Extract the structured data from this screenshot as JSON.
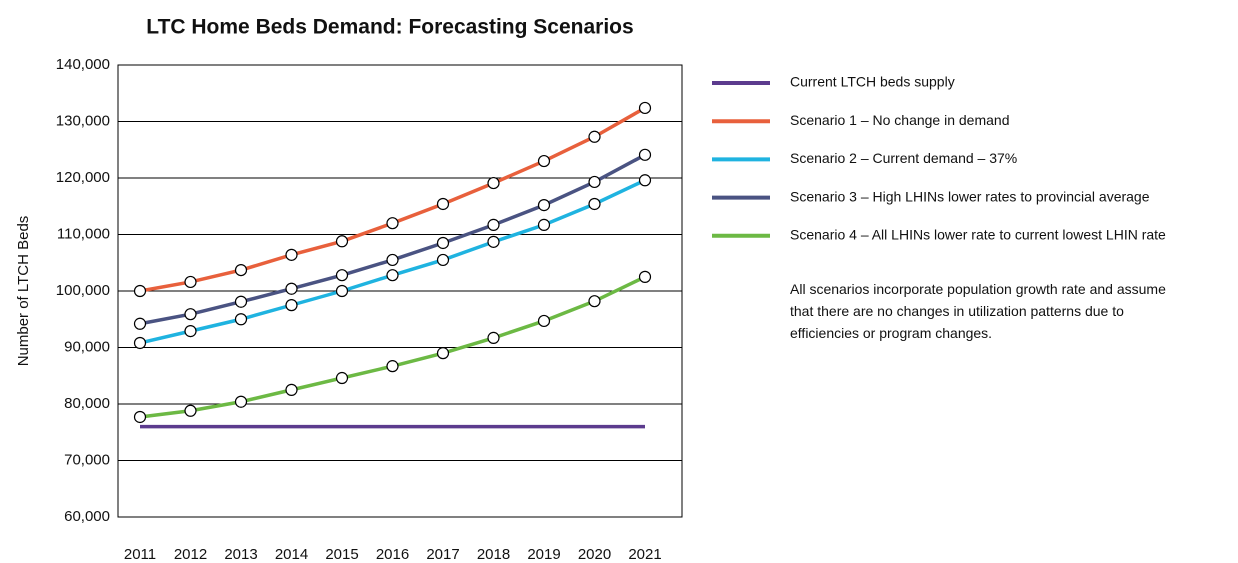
{
  "chart_data": {
    "type": "line",
    "title": "LTC Home Beds Demand: Forecasting Scenarios",
    "y_label": "Number of LTCH Beds",
    "annotation": "All scenarios incorporate population growth rate and assume that there are no changes in utilization patterns due to efficiencies or program changes.",
    "categories": [
      "2011",
      "2012",
      "2013",
      "2014",
      "2015",
      "2016",
      "2017",
      "2018",
      "2019",
      "2020",
      "2021"
    ],
    "ylim": [
      60000,
      140000
    ],
    "yticks": [
      {
        "value": 60000,
        "label": "60,000"
      },
      {
        "value": 70000,
        "label": "70,000"
      },
      {
        "value": 80000,
        "label": "80,000"
      },
      {
        "value": 90000,
        "label": "90,000"
      },
      {
        "value": 100000,
        "label": "100,000"
      },
      {
        "value": 110000,
        "label": "110,000"
      },
      {
        "value": 120000,
        "label": "120,000"
      },
      {
        "value": 130000,
        "label": "130,000"
      },
      {
        "value": 140000,
        "label": "140,000"
      }
    ],
    "grid": true,
    "series": [
      {
        "name": "Current LTCH beds supply",
        "color": "#5c3b8e",
        "markers": false,
        "values": [
          76000,
          76000,
          76000,
          76000,
          76000,
          76000,
          76000,
          76000,
          76000,
          76000,
          76000
        ]
      },
      {
        "name": "Scenario 1 – No change in demand",
        "color": "#e8603c",
        "markers": true,
        "values": [
          100000,
          101600,
          103700,
          106400,
          108800,
          112000,
          115400,
          119100,
          123000,
          127300,
          132400
        ]
      },
      {
        "name": "Scenario 2 – Current demand – 37%",
        "color": "#1fb3e0",
        "markers": true,
        "values": [
          90800,
          92900,
          95000,
          97500,
          100000,
          102800,
          105500,
          108700,
          111700,
          115400,
          119600
        ]
      },
      {
        "name": "Scenario 3 – High LHINs lower rates to provincial average",
        "color": "#4a5382",
        "markers": true,
        "values": [
          94200,
          95900,
          98100,
          100400,
          102800,
          105500,
          108500,
          111700,
          115200,
          119300,
          124100
        ]
      },
      {
        "name": "Scenario 4 – All LHINs lower rate to current lowest LHIN rate",
        "color": "#6cb944",
        "markers": true,
        "values": [
          77700,
          78800,
          80400,
          82500,
          84600,
          86700,
          89000,
          91700,
          94700,
          98200,
          102500
        ]
      }
    ]
  }
}
